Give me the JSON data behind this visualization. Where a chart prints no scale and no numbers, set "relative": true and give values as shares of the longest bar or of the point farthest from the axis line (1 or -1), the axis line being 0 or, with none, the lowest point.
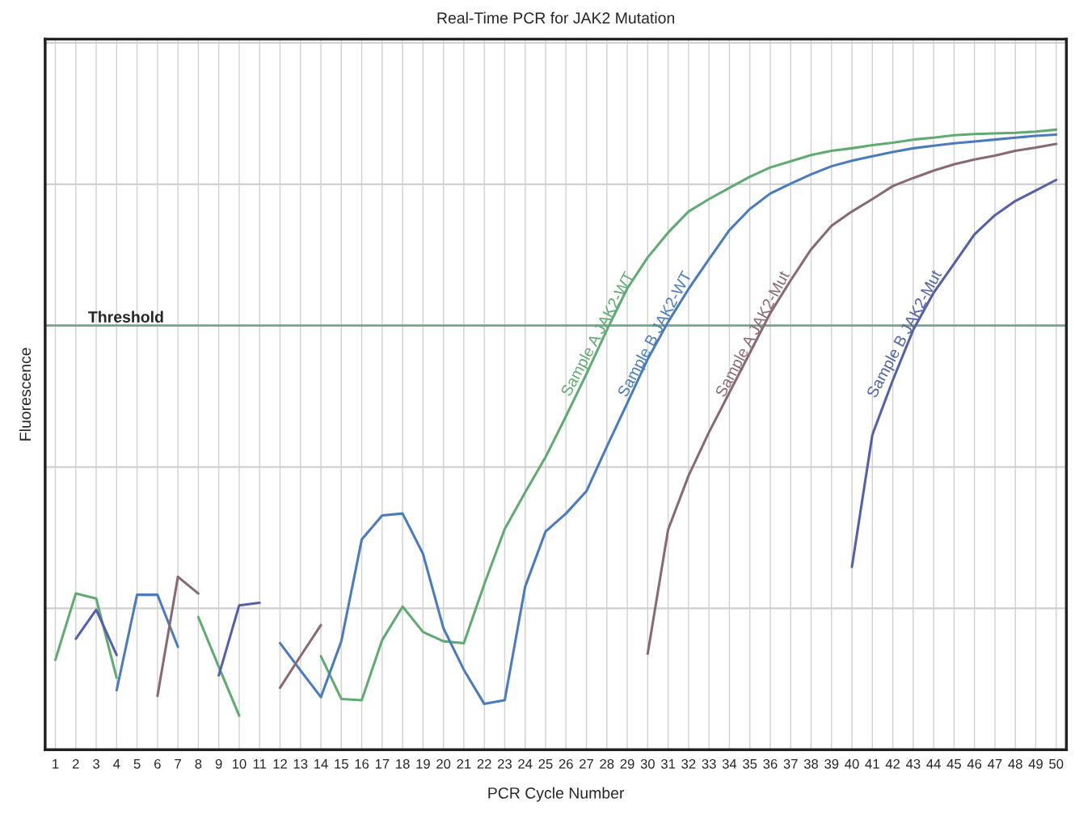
{
  "chart_data": {
    "type": "line",
    "title": "Real-Time PCR for JAK2 Mutation",
    "xlabel": "PCR Cycle Number",
    "ylabel": "Fluorescence",
    "relative": true,
    "grid": true,
    "legend": false,
    "categories": [
      "1",
      "2",
      "3",
      "4",
      "5",
      "6",
      "7",
      "8",
      "9",
      "10",
      "11",
      "12",
      "13",
      "14",
      "15",
      "16",
      "17",
      "18",
      "19",
      "20",
      "21",
      "22",
      "23",
      "24",
      "25",
      "26",
      "27",
      "28",
      "29",
      "30",
      "31",
      "32",
      "33",
      "34",
      "35",
      "36",
      "37",
      "38",
      "39",
      "40",
      "41",
      "42",
      "43",
      "44",
      "45",
      "46",
      "47",
      "48",
      "49",
      "50"
    ],
    "series": [
      {
        "name": "Sample A JAK2-WT",
        "color": "#5fab72",
        "values": [
          0.145,
          0.252,
          0.244,
          0.116,
          null,
          null,
          null,
          0.214,
          0.134,
          0.055,
          null,
          null,
          null,
          0.151,
          0.082,
          0.08,
          0.177,
          0.231,
          0.19,
          0.175,
          0.172,
          0.267,
          0.356,
          0.415,
          0.472,
          0.538,
          0.606,
          0.677,
          0.744,
          0.794,
          0.834,
          0.868,
          0.888,
          0.906,
          0.924,
          0.939,
          0.949,
          0.959,
          0.966,
          0.97,
          0.975,
          0.979,
          0.984,
          0.987,
          0.991,
          0.993,
          0.994,
          0.995,
          0.997,
          1.0
        ]
      },
      {
        "name": "Sample B JAK2-WT",
        "color": "#4a7cbd",
        "values": [
          null,
          null,
          null,
          0.096,
          0.25,
          0.25,
          0.166,
          null,
          null,
          null,
          null,
          0.172,
          0.128,
          0.085,
          0.175,
          0.339,
          0.378,
          0.381,
          0.316,
          0.196,
          0.129,
          0.074,
          0.08,
          0.263,
          0.352,
          0.381,
          0.417,
          0.489,
          0.559,
          0.63,
          0.69,
          0.743,
          0.791,
          0.838,
          0.872,
          0.897,
          0.913,
          0.928,
          0.941,
          0.95,
          0.957,
          0.964,
          0.97,
          0.974,
          0.978,
          0.981,
          0.984,
          0.987,
          0.99,
          0.992
        ]
      },
      {
        "name": "Sample A JAK2-Mut",
        "color": "#8a6a72",
        "values": [
          null,
          null,
          null,
          null,
          null,
          0.087,
          0.279,
          0.252,
          null,
          null,
          null,
          0.1,
          0.151,
          0.201,
          null,
          null,
          null,
          null,
          null,
          null,
          null,
          null,
          null,
          null,
          null,
          null,
          null,
          null,
          null,
          0.155,
          0.355,
          0.442,
          0.512,
          0.576,
          0.64,
          0.704,
          0.757,
          0.807,
          0.845,
          0.868,
          0.888,
          0.909,
          0.922,
          0.934,
          0.944,
          0.952,
          0.958,
          0.966,
          0.971,
          0.977
        ]
      },
      {
        "name": "Sample B JAK2-Mut",
        "color": "#5461a8",
        "values": [
          null,
          0.179,
          0.226,
          0.153,
          null,
          null,
          null,
          null,
          0.12,
          0.233,
          0.237,
          null,
          null,
          null,
          null,
          null,
          null,
          null,
          null,
          null,
          null,
          null,
          null,
          null,
          null,
          null,
          null,
          null,
          null,
          null,
          null,
          null,
          null,
          null,
          null,
          null,
          null,
          null,
          null,
          0.295,
          0.508,
          0.596,
          0.677,
          0.737,
          0.784,
          0.831,
          0.862,
          0.885,
          0.902,
          0.919
        ]
      }
    ],
    "ref_lines": [
      {
        "axis": "y",
        "value": 0.684,
        "label": "Threshold",
        "color": "#76a886"
      }
    ]
  }
}
